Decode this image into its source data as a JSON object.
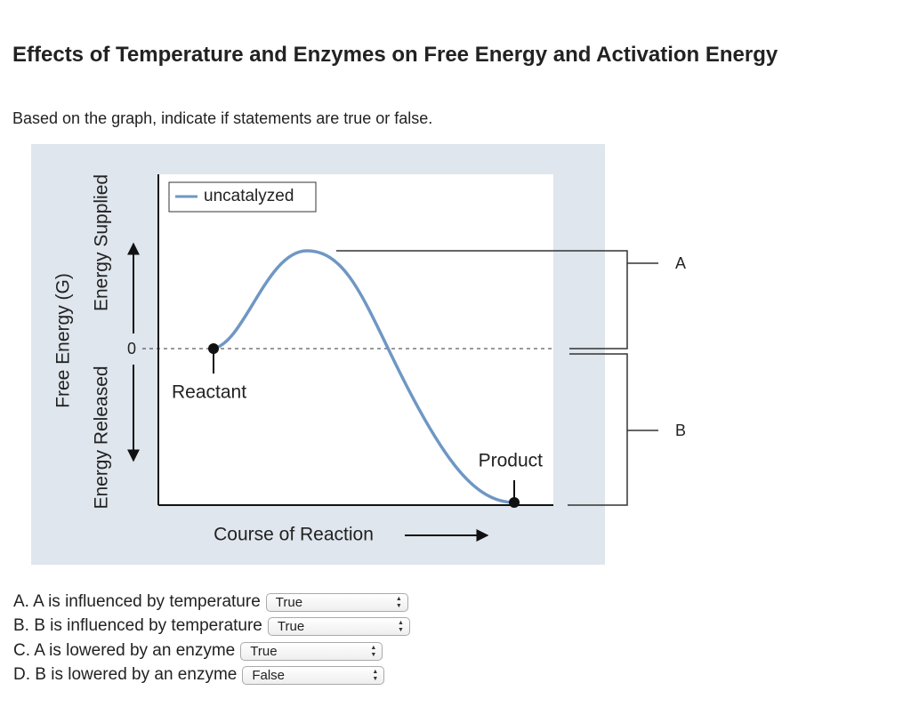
{
  "header": {
    "title": "Effects of Temperature and Enzymes on Free Energy and Activation Energy"
  },
  "instructions": "Based on the graph, indicate if statements are true or false.",
  "figure": {
    "legend": "uncatalyzed",
    "y_axis_label": "Free Energy (G)",
    "energy_supplied": "Energy Supplied",
    "energy_released": "Energy Released",
    "zero_label": "0",
    "reactant": "Reactant",
    "product": "Product",
    "x_axis_label": "Course of Reaction",
    "bracket_a": "A",
    "bracket_b": "B"
  },
  "questions": [
    {
      "statement": "A. A is influenced by temperature",
      "answer": "True"
    },
    {
      "statement": "B. B is influenced by temperature",
      "answer": "True"
    },
    {
      "statement": "C. A is lowered by an enzyme",
      "answer": "True"
    },
    {
      "statement": "D. B is lowered by an enzyme",
      "answer": "False"
    }
  ]
}
